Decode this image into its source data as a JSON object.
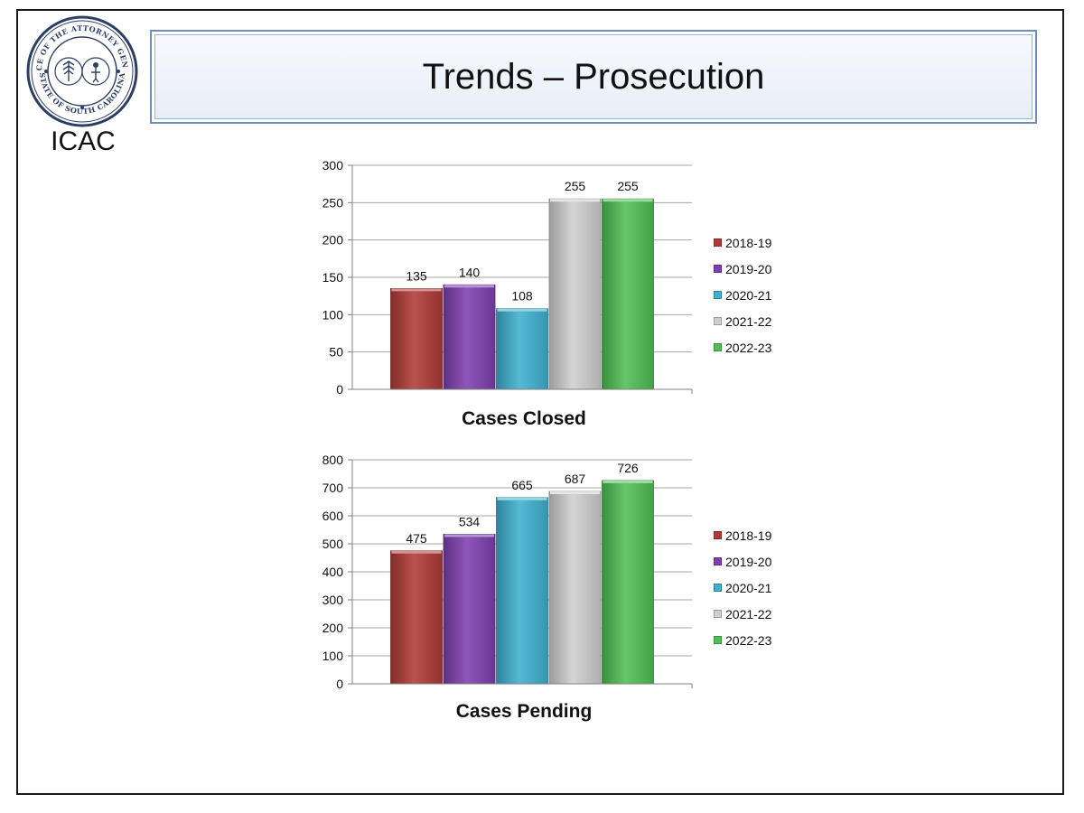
{
  "slide": {
    "title": "Trends – Prosecution",
    "org_label": "ICAC",
    "seal_top_text": "OFFICE OF THE ATTORNEY GENERAL",
    "seal_bottom_text": "STATE OF SOUTH CAROLINA"
  },
  "chart_data": [
    {
      "type": "bar",
      "title": "Cases Closed",
      "series": [
        {
          "name": "2018-19",
          "values": [
            135
          ],
          "color": "#b03a37"
        },
        {
          "name": "2019-20",
          "values": [
            140
          ],
          "color": "#7f3fb0"
        },
        {
          "name": "2020-21",
          "values": [
            108
          ],
          "color": "#3fb0cf"
        },
        {
          "name": "2021-22",
          "values": [
            255
          ],
          "color": "#cfcfcf"
        },
        {
          "name": "2022-23",
          "values": [
            255
          ],
          "color": "#4fbf55"
        }
      ],
      "ylim": [
        0,
        300
      ],
      "yticks": [
        0,
        50,
        100,
        150,
        200,
        250,
        300
      ],
      "data_labels": [
        "135",
        "140",
        "108",
        "255",
        "255"
      ],
      "grid": true,
      "legend_position": "right"
    },
    {
      "type": "bar",
      "title": "Cases Pending",
      "series": [
        {
          "name": "2018-19",
          "values": [
            475
          ],
          "color": "#b03a37"
        },
        {
          "name": "2019-20",
          "values": [
            534
          ],
          "color": "#7f3fb0"
        },
        {
          "name": "2020-21",
          "values": [
            665
          ],
          "color": "#3fb0cf"
        },
        {
          "name": "2021-22",
          "values": [
            687
          ],
          "color": "#cfcfcf"
        },
        {
          "name": "2022-23",
          "values": [
            726
          ],
          "color": "#4fbf55"
        }
      ],
      "ylim": [
        0,
        800
      ],
      "yticks": [
        0,
        100,
        200,
        300,
        400,
        500,
        600,
        700,
        800
      ],
      "data_labels": [
        "475",
        "534",
        "665",
        "687",
        "726"
      ],
      "grid": true,
      "legend_position": "right"
    }
  ]
}
